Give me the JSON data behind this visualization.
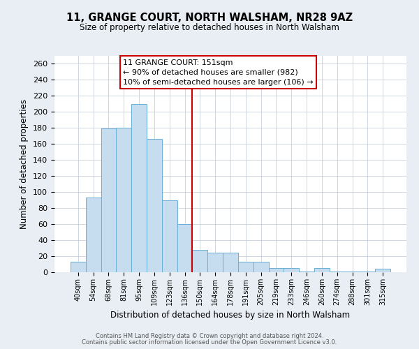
{
  "title": "11, GRANGE COURT, NORTH WALSHAM, NR28 9AZ",
  "subtitle": "Size of property relative to detached houses in North Walsham",
  "xlabel": "Distribution of detached houses by size in North Walsham",
  "ylabel": "Number of detached properties",
  "bar_labels": [
    "40sqm",
    "54sqm",
    "68sqm",
    "81sqm",
    "95sqm",
    "109sqm",
    "123sqm",
    "136sqm",
    "150sqm",
    "164sqm",
    "178sqm",
    "191sqm",
    "205sqm",
    "219sqm",
    "233sqm",
    "246sqm",
    "260sqm",
    "274sqm",
    "288sqm",
    "301sqm",
    "315sqm"
  ],
  "bar_heights": [
    13,
    93,
    179,
    180,
    210,
    166,
    90,
    60,
    28,
    24,
    24,
    13,
    13,
    5,
    5,
    1,
    5,
    1,
    1,
    1,
    4
  ],
  "bar_color": "#c5ddef",
  "bar_edge_color": "#6aaed6",
  "vline_x_idx": 8,
  "vline_color": "#cc0000",
  "annotation_title": "11 GRANGE COURT: 151sqm",
  "annotation_line1": "← 90% of detached houses are smaller (982)",
  "annotation_line2": "10% of semi-detached houses are larger (106) →",
  "ylim_max": 270,
  "yticks": [
    0,
    20,
    40,
    60,
    80,
    100,
    120,
    140,
    160,
    180,
    200,
    220,
    240,
    260
  ],
  "footer1": "Contains HM Land Registry data © Crown copyright and database right 2024.",
  "footer2": "Contains public sector information licensed under the Open Government Licence v3.0.",
  "bg_color": "#e8eef4",
  "plot_bg_color": "#ffffff",
  "grid_color": "#c8d0d8"
}
